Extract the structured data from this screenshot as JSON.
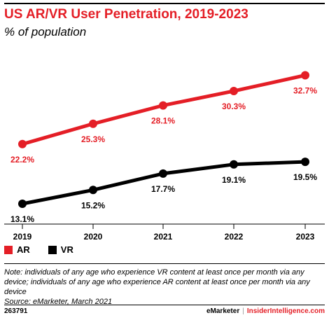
{
  "header": {
    "title": "US AR/VR User Penetration, 2019-2023",
    "subtitle": "% of population"
  },
  "chart_data": {
    "type": "line",
    "title": "US AR/VR User Penetration, 2019-2023",
    "subtitle": "% of population",
    "x": [
      "2019",
      "2020",
      "2021",
      "2022",
      "2023"
    ],
    "ylim": [
      10,
      35
    ],
    "grid": false,
    "legend": "bottom-left",
    "series": [
      {
        "name": "AR",
        "color": "#e41e26",
        "values": [
          22.2,
          25.3,
          28.1,
          30.3,
          32.7
        ],
        "labels": [
          "22.2%",
          "25.3%",
          "28.1%",
          "30.3%",
          "32.7%"
        ]
      },
      {
        "name": "VR",
        "color": "#000000",
        "values": [
          13.1,
          15.2,
          17.7,
          19.1,
          19.5
        ],
        "labels": [
          "13.1%",
          "15.2%",
          "17.7%",
          "19.1%",
          "19.5%"
        ]
      }
    ]
  },
  "legend": {
    "items": [
      {
        "label": "AR",
        "color": "#e41e26"
      },
      {
        "label": "VR",
        "color": "#000000"
      }
    ]
  },
  "note": {
    "line1": "Note: individuals of any age who experience VR content at least once per month via any device; individuals of any age who experience AR content at least once per month via any device",
    "source": "Source: eMarketer, March 2021"
  },
  "footer": {
    "chart_id": "263791",
    "brand": "eMarketer",
    "site": "InsiderIntelligence.com"
  }
}
